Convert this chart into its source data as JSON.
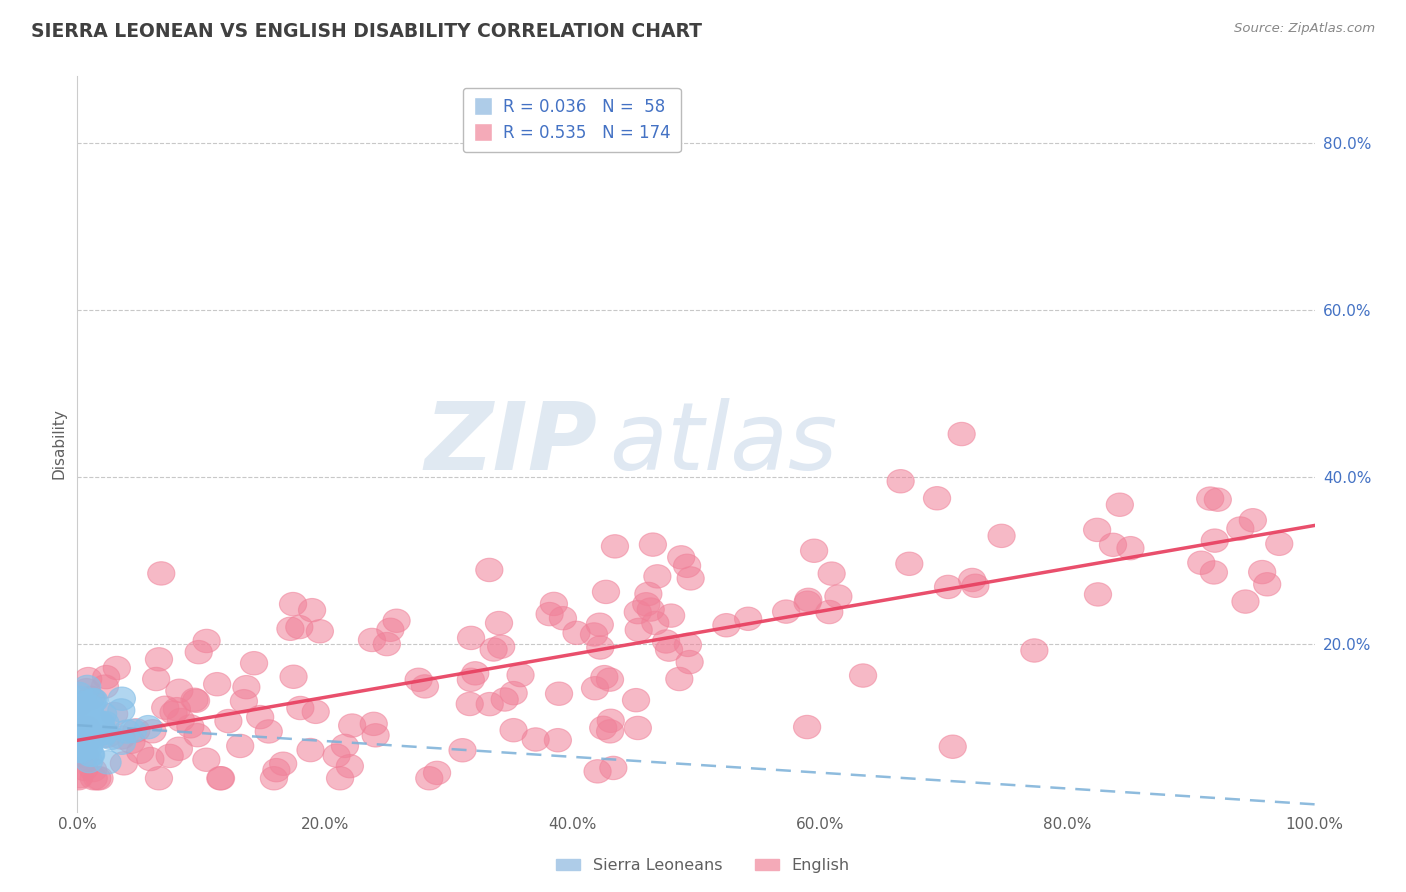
{
  "title": "SIERRA LEONEAN VS ENGLISH DISABILITY CORRELATION CHART",
  "source": "Source: ZipAtlas.com",
  "ylabel_label": "Disability",
  "right_ytick_vals": [
    0.8,
    0.6,
    0.4,
    0.2
  ],
  "right_ytick_labels": [
    "80.0%",
    "60.0%",
    "40.0%",
    "20.0%"
  ],
  "xtick_vals": [
    0.0,
    0.2,
    0.4,
    0.6,
    0.8,
    1.0
  ],
  "xtick_labels": [
    "0.0%",
    "20.0%",
    "40.0%",
    "60.0%",
    "80.0%",
    "100.0%"
  ],
  "bottom_legend": [
    "Sierra Leoneans",
    "English"
  ],
  "sierra_color": "#87c0e8",
  "english_color": "#f08098",
  "sierra_line_color": "#7ab0d8",
  "english_line_color": "#e84060",
  "background_color": "#ffffff",
  "grid_color": "#c8c8c8",
  "watermark_zip": "ZIP",
  "watermark_atlas": "atlas",
  "sierra_R": 0.036,
  "sierra_N": 58,
  "english_R": 0.535,
  "english_N": 174,
  "xlim": [
    0.0,
    1.0
  ],
  "ylim": [
    0.0,
    0.88
  ],
  "legend_color": "#4472c4",
  "title_color": "#404040",
  "source_color": "#888888",
  "axis_label_color": "#606060",
  "tick_color": "#606060"
}
